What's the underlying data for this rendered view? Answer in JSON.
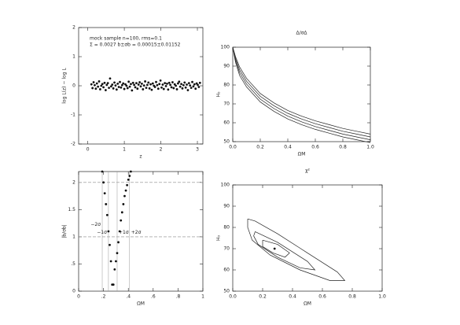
{
  "chart_data": [
    {
      "type": "scatter",
      "xlabel": "z",
      "ylabel": "log L(z) − log L",
      "annotations": [
        "mock sample n=100, rms=0.1",
        "Σ̄ = 0.0027  b±σb = 0.00015±0.01152"
      ],
      "xlim": [
        -0.25,
        3.15
      ],
      "ylim": [
        -2,
        2
      ],
      "xticks": [
        0,
        1,
        2,
        3
      ],
      "yticks": [
        -2,
        -1,
        0,
        1,
        2
      ],
      "x": [
        0.1,
        0.13,
        0.16,
        0.19,
        0.22,
        0.25,
        0.28,
        0.31,
        0.34,
        0.37,
        0.4,
        0.43,
        0.46,
        0.49,
        0.52,
        0.55,
        0.58,
        0.61,
        0.64,
        0.67,
        0.7,
        0.73,
        0.76,
        0.79,
        0.82,
        0.85,
        0.88,
        0.91,
        0.94,
        0.97,
        1.0,
        1.03,
        1.06,
        1.09,
        1.12,
        1.15,
        1.18,
        1.21,
        1.24,
        1.27,
        1.3,
        1.33,
        1.36,
        1.39,
        1.42,
        1.45,
        1.48,
        1.51,
        1.54,
        1.57,
        1.6,
        1.63,
        1.66,
        1.69,
        1.72,
        1.75,
        1.78,
        1.81,
        1.84,
        1.87,
        1.9,
        1.93,
        1.96,
        1.99,
        2.02,
        2.05,
        2.08,
        2.11,
        2.14,
        2.17,
        2.2,
        2.23,
        2.26,
        2.29,
        2.32,
        2.35,
        2.38,
        2.41,
        2.44,
        2.47,
        2.5,
        2.53,
        2.56,
        2.59,
        2.62,
        2.65,
        2.68,
        2.71,
        2.74,
        2.77,
        2.8,
        2.83,
        2.86,
        2.89,
        2.92,
        2.95,
        2.98,
        3.01,
        3.04,
        3.07
      ],
      "values": [
        0.05,
        -0.08,
        0.12,
        0.02,
        -0.1,
        0.08,
        -0.03,
        0.15,
        -0.12,
        0.0,
        0.06,
        -0.05,
        0.1,
        -0.15,
        0.03,
        0.09,
        -0.07,
        0.25,
        -0.02,
        0.04,
        -0.09,
        0.11,
        0.01,
        -0.13,
        0.07,
        -0.04,
        0.13,
        -0.06,
        0.02,
        0.08,
        -0.11,
        0.05,
        0.0,
        -0.08,
        0.14,
        -0.03,
        0.06,
        -0.16,
        0.1,
        0.03,
        -0.05,
        0.09,
        -0.1,
        0.04,
        0.12,
        -0.02,
        0.07,
        -0.12,
        0.01,
        0.15,
        -0.07,
        0.03,
        0.11,
        -0.09,
        0.05,
        -0.14,
        0.08,
        0.0,
        -0.04,
        0.13,
        0.02,
        -0.1,
        0.06,
        0.18,
        -0.06,
        0.04,
        -0.11,
        0.09,
        -0.01,
        0.07,
        -0.13,
        0.1,
        0.03,
        -0.05,
        0.12,
        -0.08,
        0.05,
        0.0,
        -0.12,
        0.08,
        0.14,
        -0.03,
        0.06,
        -0.09,
        0.02,
        0.11,
        -0.06,
        0.04,
        -0.15,
        0.09,
        0.01,
        -0.07,
        0.13,
        -0.02,
        0.05,
        -0.1,
        0.08,
        0.03,
        -0.04,
        0.1
      ]
    },
    {
      "type": "contour",
      "title": "Δ/σΔ",
      "xlabel": "ΩM",
      "ylabel": "H₀",
      "xlim": [
        0,
        1
      ],
      "ylim": [
        50,
        100
      ],
      "xticks": [
        {
          "value": 0,
          "label": "0.0"
        },
        0.2,
        0.4,
        0.6,
        0.8,
        {
          "value": 1,
          "label": "1.0"
        }
      ],
      "yticks": [
        50,
        60,
        70,
        80,
        90,
        100
      ],
      "series": [
        {
          "x": [
            0,
            0.02,
            0.05,
            0.1,
            0.2,
            0.3,
            0.4,
            0.5,
            0.6,
            0.7,
            0.8,
            0.9,
            1.0
          ],
          "values": [
            100,
            92,
            85,
            79,
            71,
            66,
            62,
            59,
            56.5,
            54.5,
            52.5,
            51,
            49.5
          ]
        },
        {
          "x": [
            0,
            0.02,
            0.05,
            0.1,
            0.2,
            0.3,
            0.4,
            0.5,
            0.6,
            0.7,
            0.8,
            0.9,
            1.0
          ],
          "values": [
            100,
            93,
            86.5,
            80.5,
            72.5,
            67.5,
            63.5,
            60.5,
            58,
            56,
            54,
            52.5,
            51
          ]
        },
        {
          "x": [
            0,
            0.02,
            0.05,
            0.1,
            0.2,
            0.3,
            0.4,
            0.5,
            0.6,
            0.7,
            0.8,
            0.9,
            1.0
          ],
          "values": [
            100,
            94,
            88,
            82,
            74,
            69,
            65,
            62,
            59.5,
            57.5,
            55.5,
            54,
            52.5
          ]
        },
        {
          "x": [
            0,
            0.02,
            0.05,
            0.1,
            0.2,
            0.3,
            0.4,
            0.5,
            0.6,
            0.7,
            0.8,
            0.9,
            1.0
          ],
          "values": [
            100,
            95,
            89.5,
            83.5,
            75.5,
            70.5,
            66.5,
            63.5,
            61,
            59,
            57,
            55.5,
            54
          ]
        }
      ]
    },
    {
      "type": "scatter",
      "xlabel": "ΩM",
      "ylabel": "|b/σb|",
      "xlim": [
        0,
        1
      ],
      "ylim": [
        0,
        2.2
      ],
      "xticks": [
        0,
        {
          "value": 0.2,
          "label": ".2"
        },
        {
          "value": 0.4,
          "label": ".4"
        },
        {
          "value": 0.6,
          "label": ".6"
        },
        {
          "value": 0.8,
          "label": ".8"
        },
        1
      ],
      "yticks": [
        0,
        {
          "value": 0.5,
          "label": ".5"
        },
        1,
        1.5,
        2
      ],
      "hlines": [
        1,
        2
      ],
      "vlines": [
        {
          "value": 0.19,
          "label": "−2σ"
        },
        {
          "value": 0.24,
          "label": "−1σ"
        },
        {
          "value": 0.31,
          "label": "+1σ"
        },
        {
          "value": 0.41,
          "label": "+2σ"
        }
      ],
      "x": [
        0.19,
        0.2,
        0.21,
        0.22,
        0.23,
        0.24,
        0.25,
        0.26,
        0.27,
        0.28,
        0.29,
        0.3,
        0.31,
        0.32,
        0.33,
        0.34,
        0.35,
        0.36,
        0.37,
        0.38,
        0.39,
        0.4,
        0.41,
        0.42
      ],
      "values": [
        2.2,
        2.0,
        1.8,
        1.6,
        1.4,
        1.1,
        0.85,
        0.55,
        0.12,
        0.12,
        0.4,
        0.55,
        0.7,
        0.9,
        1.1,
        1.3,
        1.45,
        1.6,
        1.75,
        1.85,
        1.95,
        2.05,
        2.12,
        2.2
      ]
    },
    {
      "type": "contour",
      "title": "χ²",
      "xlabel": "ΩM",
      "ylabel": "H₀",
      "xlim": [
        0,
        1
      ],
      "ylim": [
        50,
        100
      ],
      "xticks": [
        {
          "value": 0,
          "label": "0.0"
        },
        0.2,
        0.4,
        0.6,
        0.8,
        {
          "value": 1,
          "label": "1.0"
        }
      ],
      "yticks": [
        50,
        60,
        70,
        80,
        90,
        100
      ],
      "series": [
        {
          "x": [
            0.1,
            0.15,
            0.3,
            0.5,
            0.7,
            0.75,
            0.65,
            0.45,
            0.25,
            0.13,
            0.1,
            0.1
          ],
          "values": [
            84,
            83,
            77,
            68,
            59,
            55,
            55,
            60,
            67,
            74,
            80,
            84
          ]
        },
        {
          "x": [
            0.15,
            0.3,
            0.5,
            0.55,
            0.45,
            0.3,
            0.17,
            0.14,
            0.15
          ],
          "values": [
            78,
            73,
            64,
            60,
            61,
            66,
            72,
            76,
            78
          ]
        },
        {
          "x": [
            0.2,
            0.3,
            0.38,
            0.35,
            0.27,
            0.2,
            0.2
          ],
          "values": [
            74,
            72,
            68,
            66,
            68,
            71,
            74
          ]
        }
      ],
      "x": [
        0.28
      ],
      "values": [
        70
      ]
    }
  ]
}
